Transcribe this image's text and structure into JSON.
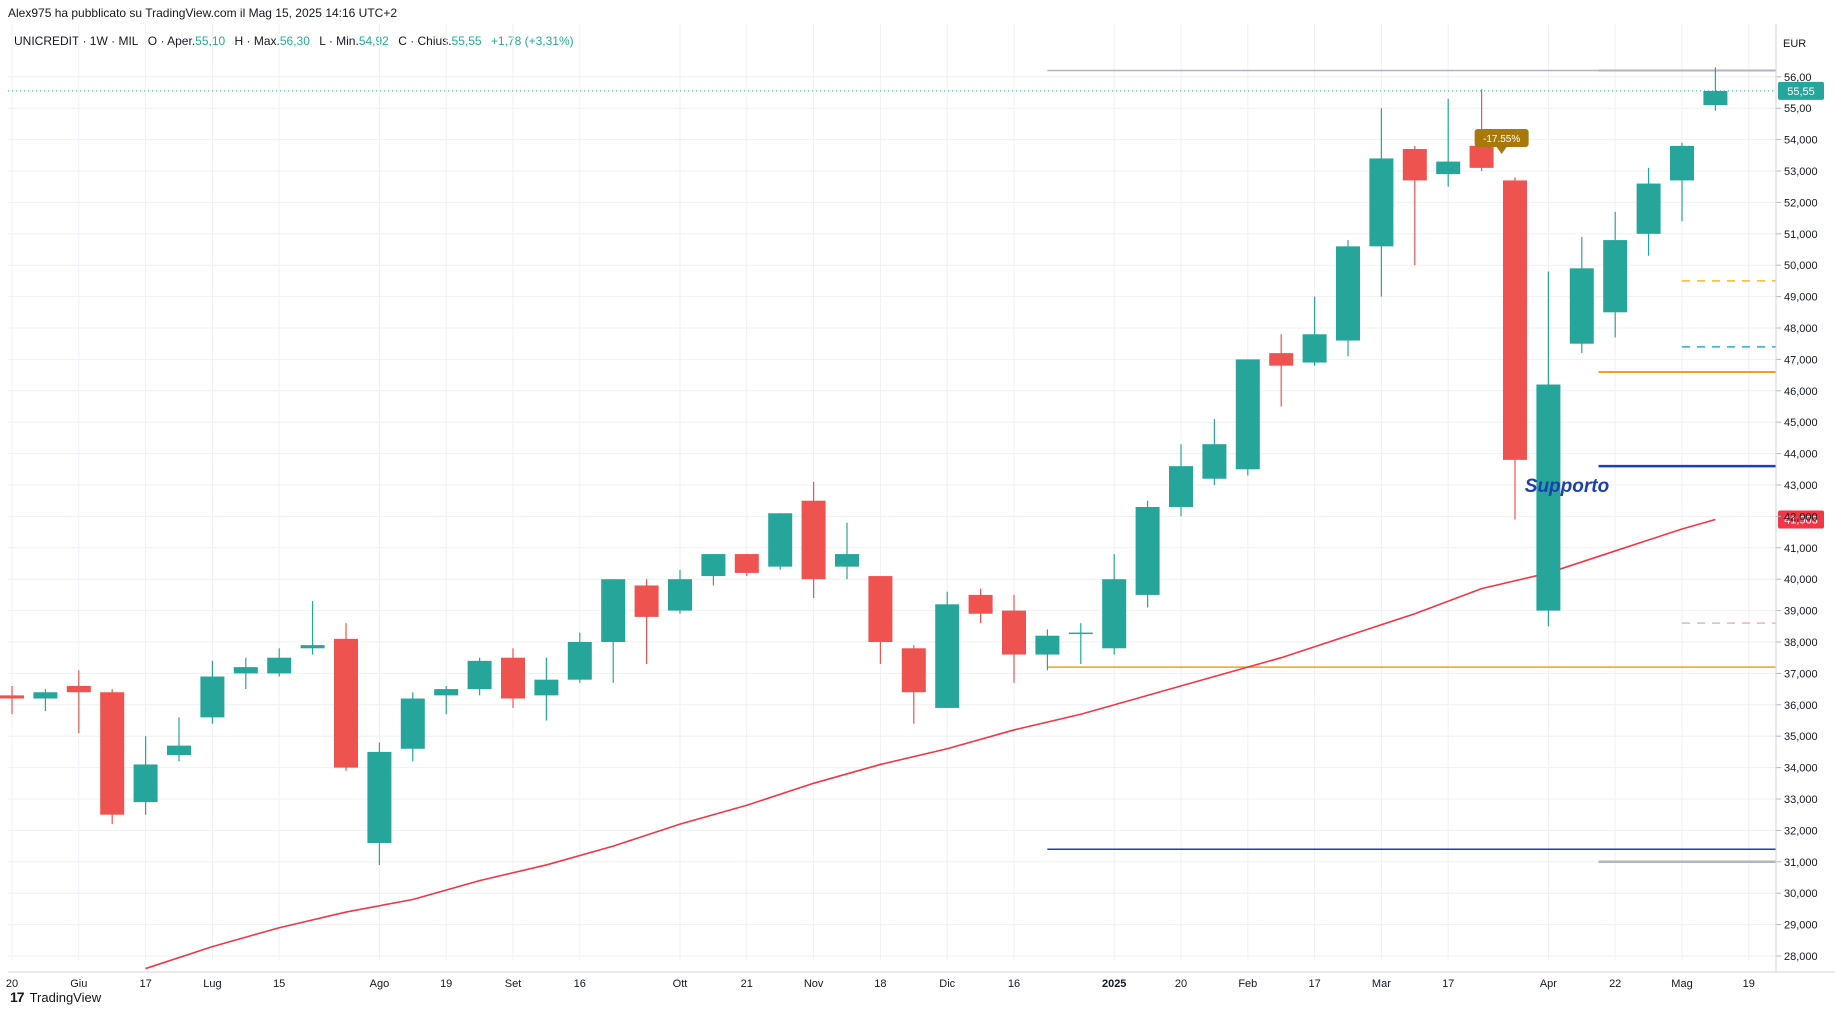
{
  "credit": "Alex975 ha pubblicato su TradingView.com il Mag 15, 2025 14:16 UTC+2",
  "legend": {
    "symbol": "UNICREDIT · 1W · MIL",
    "open_label": "O · Aper.",
    "open": "55,10",
    "high_label": "H · Max.",
    "high": "56,30",
    "low_label": "L · Min.",
    "low": "54,92",
    "close_label": "C · Chius.",
    "close": "55,55",
    "change": "+1,78 (+3,31%)"
  },
  "currency": "EUR",
  "brand": "TradingView",
  "brand_logo": "17",
  "colors": {
    "up": "#26a69a",
    "down": "#ef5350",
    "ma": "#f23645",
    "grid": "#eef1f6",
    "axis_text": "#131722",
    "support_blue": "#1e3fb0",
    "orange_line": "#f0a020",
    "grey_line": "#b2b5be",
    "dash_yellow": "#f5b925",
    "dash_cyan": "#2ab0c8",
    "dash_pink": "#e7b5bf",
    "badge": "#a8780a"
  },
  "chart_data": {
    "type": "candlestick",
    "timeframe": "1W",
    "ylim": [
      27.5,
      56.4
    ],
    "yticks": [
      "28,000",
      "29,000",
      "30,000",
      "31,000",
      "32,000",
      "33,000",
      "34,000",
      "35,000",
      "36,000",
      "37,000",
      "38,000",
      "39,000",
      "40,000",
      "41,000",
      "42,000",
      "43,000",
      "44,000",
      "45,000",
      "46,000",
      "47,000",
      "48,000",
      "49,000",
      "50,000",
      "51,000",
      "52,000",
      "53,000",
      "54,000",
      "55,00",
      "56,00"
    ],
    "xticks": [
      {
        "label": "20",
        "i": 0
      },
      {
        "label": "Giu",
        "i": 2
      },
      {
        "label": "17",
        "i": 4
      },
      {
        "label": "Lug",
        "i": 6
      },
      {
        "label": "15",
        "i": 8
      },
      {
        "label": "Ago",
        "i": 11
      },
      {
        "label": "19",
        "i": 13
      },
      {
        "label": "Set",
        "i": 15
      },
      {
        "label": "16",
        "i": 17
      },
      {
        "label": "Ott",
        "i": 20
      },
      {
        "label": "21",
        "i": 22
      },
      {
        "label": "Nov",
        "i": 24
      },
      {
        "label": "18",
        "i": 26
      },
      {
        "label": "Dic",
        "i": 28
      },
      {
        "label": "16",
        "i": 30
      },
      {
        "label": "2025",
        "i": 33
      },
      {
        "label": "20",
        "i": 35
      },
      {
        "label": "Feb",
        "i": 37
      },
      {
        "label": "17",
        "i": 39
      },
      {
        "label": "Mar",
        "i": 41
      },
      {
        "label": "17",
        "i": 43
      },
      {
        "label": "Apr",
        "i": 46
      },
      {
        "label": "22",
        "i": 48
      },
      {
        "label": "Mag",
        "i": 50
      },
      {
        "label": "19",
        "i": 52
      }
    ],
    "candles": [
      {
        "o": 36.3,
        "h": 36.6,
        "l": 35.7,
        "c": 36.2
      },
      {
        "o": 36.2,
        "h": 36.5,
        "l": 35.8,
        "c": 36.4
      },
      {
        "o": 36.6,
        "h": 37.1,
        "l": 35.1,
        "c": 36.4
      },
      {
        "o": 36.4,
        "h": 36.5,
        "l": 32.2,
        "c": 32.5
      },
      {
        "o": 32.9,
        "h": 35.0,
        "l": 32.5,
        "c": 34.1
      },
      {
        "o": 34.4,
        "h": 35.6,
        "l": 34.2,
        "c": 34.7
      },
      {
        "o": 35.6,
        "h": 37.4,
        "l": 35.4,
        "c": 36.9
      },
      {
        "o": 37.0,
        "h": 37.5,
        "l": 36.5,
        "c": 37.2
      },
      {
        "o": 37.0,
        "h": 37.8,
        "l": 36.9,
        "c": 37.5
      },
      {
        "o": 37.8,
        "h": 39.3,
        "l": 37.6,
        "c": 37.9
      },
      {
        "o": 38.1,
        "h": 38.6,
        "l": 33.9,
        "c": 34.0
      },
      {
        "o": 31.6,
        "h": 34.8,
        "l": 30.9,
        "c": 34.5
      },
      {
        "o": 34.6,
        "h": 36.4,
        "l": 34.2,
        "c": 36.2
      },
      {
        "o": 36.3,
        "h": 36.6,
        "l": 35.7,
        "c": 36.5
      },
      {
        "o": 36.5,
        "h": 37.5,
        "l": 36.3,
        "c": 37.4
      },
      {
        "o": 37.5,
        "h": 37.8,
        "l": 35.9,
        "c": 36.2
      },
      {
        "o": 36.3,
        "h": 37.5,
        "l": 35.5,
        "c": 36.8
      },
      {
        "o": 36.8,
        "h": 38.3,
        "l": 36.7,
        "c": 38.0
      },
      {
        "o": 38.0,
        "h": 40.0,
        "l": 36.7,
        "c": 40.0
      },
      {
        "o": 39.8,
        "h": 40.0,
        "l": 37.3,
        "c": 38.8
      },
      {
        "o": 39.0,
        "h": 40.3,
        "l": 38.9,
        "c": 40.0
      },
      {
        "o": 40.1,
        "h": 40.8,
        "l": 39.8,
        "c": 40.8
      },
      {
        "o": 40.8,
        "h": 40.8,
        "l": 40.1,
        "c": 40.2
      },
      {
        "o": 40.4,
        "h": 42.1,
        "l": 40.3,
        "c": 42.1
      },
      {
        "o": 42.5,
        "h": 43.1,
        "l": 39.4,
        "c": 40.0
      },
      {
        "o": 40.4,
        "h": 41.8,
        "l": 40.0,
        "c": 40.8
      },
      {
        "o": 40.1,
        "h": 40.1,
        "l": 37.3,
        "c": 38.0
      },
      {
        "o": 37.8,
        "h": 37.9,
        "l": 35.4,
        "c": 36.4
      },
      {
        "o": 35.9,
        "h": 39.6,
        "l": 35.9,
        "c": 39.2
      },
      {
        "o": 39.5,
        "h": 39.7,
        "l": 38.6,
        "c": 38.9
      },
      {
        "o": 39.0,
        "h": 39.5,
        "l": 36.7,
        "c": 37.6
      },
      {
        "o": 37.6,
        "h": 38.4,
        "l": 37.1,
        "c": 38.2
      },
      {
        "o": 38.3,
        "h": 38.6,
        "l": 37.3,
        "c": 38.3
      },
      {
        "o": 37.8,
        "h": 40.8,
        "l": 37.6,
        "c": 40.0
      },
      {
        "o": 39.5,
        "h": 42.5,
        "l": 39.1,
        "c": 42.3
      },
      {
        "o": 42.3,
        "h": 44.3,
        "l": 42.0,
        "c": 43.6
      },
      {
        "o": 43.2,
        "h": 45.1,
        "l": 43.0,
        "c": 44.3
      },
      {
        "o": 43.5,
        "h": 47.0,
        "l": 43.3,
        "c": 47.0
      },
      {
        "o": 47.2,
        "h": 47.8,
        "l": 45.5,
        "c": 46.8
      },
      {
        "o": 46.9,
        "h": 49.0,
        "l": 46.8,
        "c": 47.8
      },
      {
        "o": 47.6,
        "h": 50.8,
        "l": 47.1,
        "c": 50.6
      },
      {
        "o": 50.6,
        "h": 55.0,
        "l": 49.0,
        "c": 53.4
      },
      {
        "o": 53.7,
        "h": 53.8,
        "l": 50.0,
        "c": 52.7
      },
      {
        "o": 52.9,
        "h": 55.3,
        "l": 52.5,
        "c": 53.3
      },
      {
        "o": 53.8,
        "h": 55.6,
        "l": 53.0,
        "c": 53.1
      },
      {
        "o": 52.7,
        "h": 52.8,
        "l": 41.9,
        "c": 43.8
      },
      {
        "o": 39.0,
        "h": 49.8,
        "l": 38.5,
        "c": 46.2
      },
      {
        "o": 47.5,
        "h": 50.9,
        "l": 47.2,
        "c": 49.9
      },
      {
        "o": 48.5,
        "h": 51.7,
        "l": 47.7,
        "c": 50.8
      },
      {
        "o": 51.0,
        "h": 53.1,
        "l": 50.3,
        "c": 52.6
      },
      {
        "o": 52.7,
        "h": 53.9,
        "l": 51.4,
        "c": 53.8
      },
      {
        "o": 55.1,
        "h": 56.3,
        "l": 54.92,
        "c": 55.55
      }
    ],
    "moving_average": [
      {
        "i": 4,
        "v": 27.6
      },
      {
        "i": 6,
        "v": 28.3
      },
      {
        "i": 8,
        "v": 28.9
      },
      {
        "i": 10,
        "v": 29.4
      },
      {
        "i": 12,
        "v": 29.8
      },
      {
        "i": 14,
        "v": 30.4
      },
      {
        "i": 16,
        "v": 30.9
      },
      {
        "i": 18,
        "v": 31.5
      },
      {
        "i": 20,
        "v": 32.2
      },
      {
        "i": 22,
        "v": 32.8
      },
      {
        "i": 24,
        "v": 33.5
      },
      {
        "i": 26,
        "v": 34.1
      },
      {
        "i": 28,
        "v": 34.6
      },
      {
        "i": 30,
        "v": 35.2
      },
      {
        "i": 32,
        "v": 35.7
      },
      {
        "i": 34,
        "v": 36.3
      },
      {
        "i": 36,
        "v": 36.9
      },
      {
        "i": 38,
        "v": 37.5
      },
      {
        "i": 40,
        "v": 38.2
      },
      {
        "i": 42,
        "v": 38.9
      },
      {
        "i": 44,
        "v": 39.7
      },
      {
        "i": 46,
        "v": 40.2
      },
      {
        "i": 48,
        "v": 40.9
      },
      {
        "i": 50,
        "v": 41.6
      },
      {
        "i": 51,
        "v": 41.9
      }
    ],
    "hlines": [
      {
        "from_i": 31,
        "to_i": 53.5,
        "y": 56.2,
        "color": "grey_line",
        "width": 1.5,
        "dash": false
      },
      {
        "from_i": 47.5,
        "to_i": 53.5,
        "y": 56.2,
        "color": "grey_line",
        "width": 2,
        "dash": false
      },
      {
        "from_i": 50,
        "to_i": 53.5,
        "y": 49.5,
        "color": "dash_yellow",
        "width": 1.5,
        "dash": true
      },
      {
        "from_i": 50,
        "to_i": 53.5,
        "y": 47.4,
        "color": "dash_cyan",
        "width": 1.5,
        "dash": true
      },
      {
        "from_i": 47.5,
        "to_i": 53.5,
        "y": 46.6,
        "color": "orange_line",
        "width": 2,
        "dash": false
      },
      {
        "from_i": 47.5,
        "to_i": 53.5,
        "y": 43.6,
        "color": "support_blue",
        "width": 2.5,
        "dash": false
      },
      {
        "from_i": 50,
        "to_i": 53.5,
        "y": 38.6,
        "color": "dash_pink",
        "width": 1.5,
        "dash": true
      },
      {
        "from_i": 31,
        "to_i": 53.5,
        "y": 37.2,
        "color": "orange_line",
        "width": 1.5,
        "dash": false
      },
      {
        "from_i": 31,
        "to_i": 53.5,
        "y": 31.4,
        "color": "support_blue",
        "width": 1.5,
        "dash": false
      },
      {
        "from_i": 47.5,
        "to_i": 53.5,
        "y": 31.0,
        "color": "grey_line",
        "width": 2.5,
        "dash": false
      }
    ],
    "support_label": "Supporto",
    "change_badge": {
      "text": "-17.55%",
      "i": 44.6,
      "y": 53.7
    },
    "price_labels": [
      {
        "text": "55,55",
        "y": 55.55,
        "color": "up"
      },
      {
        "text": "41,903",
        "y": 41.903,
        "color": "ma"
      }
    ],
    "last_price": 55.55
  }
}
